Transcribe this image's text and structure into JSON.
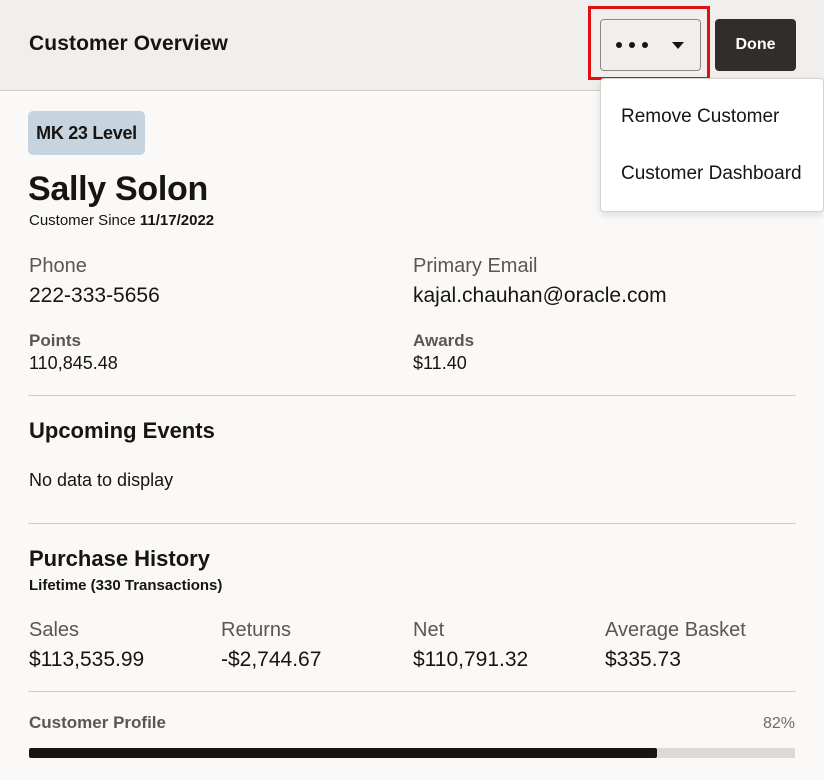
{
  "header": {
    "title": "Customer Overview",
    "more_icon": "more-horizontal-icon",
    "dropdown_icon": "caret-down-icon",
    "done_label": "Done"
  },
  "menu": {
    "items": [
      {
        "label": "Remove Customer"
      },
      {
        "label": "Customer Dashboard"
      }
    ]
  },
  "customer": {
    "level_badge": "MK 23 Level",
    "name": "Sally Solon",
    "since_label": "Customer Since",
    "since_date": "11/17/2022",
    "phone_label": "Phone",
    "phone": "222-333-5656",
    "email_label": "Primary Email",
    "email": "kajal.chauhan@oracle.com",
    "points_label": "Points",
    "points": "110,845.48",
    "awards_label": "Awards",
    "awards": "$11.40"
  },
  "events": {
    "title": "Upcoming Events",
    "empty_text": "No data to display"
  },
  "purchase_history": {
    "title": "Purchase History",
    "subtitle": "Lifetime (330 Transactions)",
    "stats": [
      {
        "label": "Sales",
        "value": "$113,535.99"
      },
      {
        "label": "Returns",
        "value": "-$2,744.67"
      },
      {
        "label": "Net",
        "value": "$110,791.32"
      },
      {
        "label": "Average Basket",
        "value": "$335.73"
      }
    ]
  },
  "profile": {
    "label": "Customer Profile",
    "percent_text": "82%",
    "completion": 0.82
  },
  "colors": {
    "header_bg": "#f1efed",
    "done_bg": "#312d2a",
    "badge_bg": "#c6d4df",
    "highlight": "#e01010"
  }
}
